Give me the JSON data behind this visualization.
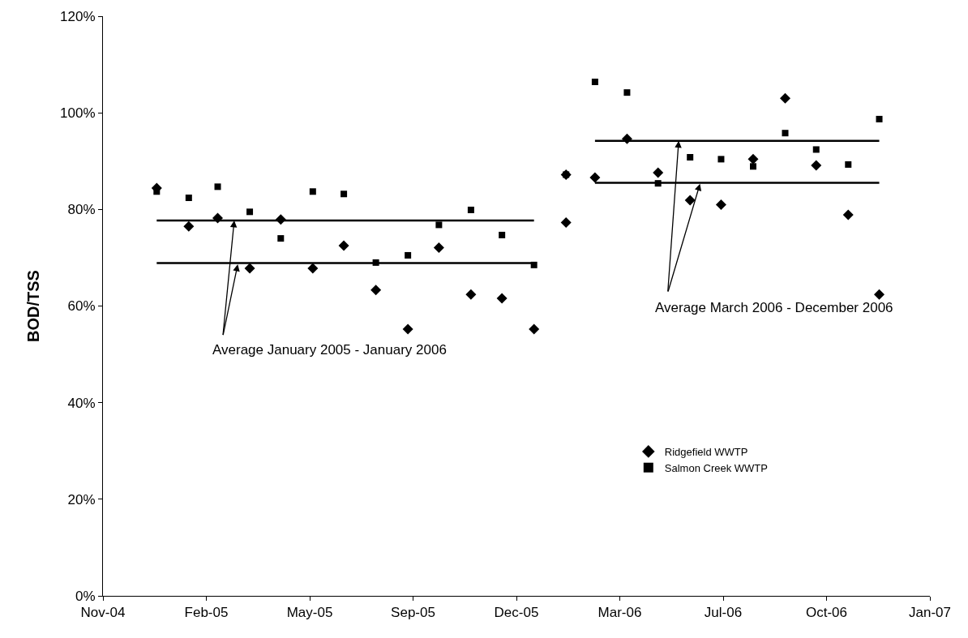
{
  "chart_data": {
    "type": "scatter",
    "ylabel": "BOD/TSS",
    "legend": "bottom right",
    "grid": false,
    "xlim": [
      "2004-11-10",
      "2007-01-19"
    ],
    "xticks": [
      {
        "value": "2004-11-10",
        "label": "Nov-04"
      },
      {
        "value": "2005-02-18",
        "label": "Feb-05"
      },
      {
        "value": "2005-05-29",
        "label": "May-05"
      },
      {
        "value": "2005-09-06",
        "label": "Sep-05"
      },
      {
        "value": "2005-12-15",
        "label": "Dec-05"
      },
      {
        "value": "2006-03-25",
        "label": "Mar-06"
      },
      {
        "value": "2006-07-03",
        "label": "Jul-06"
      },
      {
        "value": "2006-10-11",
        "label": "Oct-06"
      },
      {
        "value": "2007-01-19",
        "label": "Jan-07"
      }
    ],
    "ylim": [
      0,
      120
    ],
    "yticks": [
      {
        "value": 0,
        "label": "0%"
      },
      {
        "value": 20,
        "label": "20%"
      },
      {
        "value": 40,
        "label": "40%"
      },
      {
        "value": 60,
        "label": "60%"
      },
      {
        "value": 80,
        "label": "80%"
      },
      {
        "value": 100,
        "label": "100%"
      },
      {
        "value": 120,
        "label": "120%"
      }
    ],
    "annotations": [
      {
        "text": "Average January 2005 - January 2006",
        "x": "2005-03-17",
        "y": 77.7
      },
      {
        "text": "Average March 2006 - December 2006",
        "x": "2006-05-21",
        "y": 94.2
      }
    ],
    "series": [
      {
        "name": "Ridgefield WWTP",
        "marker": "diamond",
        "color": "#000000",
        "x": [
          "2005-01-01",
          "2005-02-01",
          "2005-03-01",
          "2005-04-01",
          "2005-05-01",
          "2005-06-01",
          "2005-07-01",
          "2005-08-01",
          "2005-09-01",
          "2005-10-01",
          "2005-11-01",
          "2005-12-01",
          "2006-01-01",
          "2006-02-01",
          "2006-02-01",
          "2006-03-01",
          "2006-04-01",
          "2006-05-01",
          "2006-06-01",
          "2006-07-01",
          "2006-08-01",
          "2006-09-01",
          "2006-10-01",
          "2006-11-01",
          "2006-12-01"
        ],
        "values": [
          84.4,
          76.5,
          78.2,
          67.8,
          77.9,
          67.8,
          72.5,
          63.3,
          55.2,
          72.1,
          62.4,
          61.6,
          55.2,
          87.2,
          77.3,
          86.6,
          94.6,
          87.6,
          81.9,
          81.0,
          90.4,
          103.0,
          89.1,
          78.9,
          62.4
        ]
      },
      {
        "name": "Salmon Creek WWTP",
        "marker": "square",
        "color": "#000000",
        "x": [
          "2005-01-01",
          "2005-02-01",
          "2005-03-01",
          "2005-04-01",
          "2005-05-01",
          "2005-06-01",
          "2005-07-01",
          "2005-08-01",
          "2005-09-01",
          "2005-10-01",
          "2005-11-01",
          "2005-12-01",
          "2006-01-01",
          "2006-02-01",
          "2006-03-01",
          "2006-04-01",
          "2006-05-01",
          "2006-06-01",
          "2006-07-01",
          "2006-08-01",
          "2006-09-01",
          "2006-10-01",
          "2006-11-01",
          "2006-12-01"
        ],
        "values": [
          83.7,
          82.4,
          84.7,
          79.5,
          74.0,
          83.7,
          83.2,
          69.0,
          70.5,
          76.8,
          79.9,
          74.7,
          68.5,
          87.2,
          106.4,
          104.2,
          85.4,
          90.8,
          90.4,
          88.9,
          95.8,
          92.4,
          89.3,
          98.7
        ]
      },
      {
        "type": "line",
        "line_style": "solid",
        "marker": "none",
        "color": "#000000",
        "x": [
          "2005-01-01",
          "2006-01-01"
        ],
        "values": [
          77.7,
          77.7
        ]
      },
      {
        "type": "line",
        "line_style": "solid",
        "marker": "none",
        "color": "#000000",
        "x": [
          "2005-01-01",
          "2006-01-01"
        ],
        "values": [
          68.9,
          68.9
        ]
      },
      {
        "type": "line",
        "line_style": "solid",
        "marker": "none",
        "color": "#000000",
        "x": [
          "2006-03-01",
          "2006-12-01"
        ],
        "values": [
          94.2,
          94.2
        ]
      },
      {
        "type": "line",
        "line_style": "solid",
        "marker": "none",
        "color": "#000000",
        "x": [
          "2006-03-01",
          "2006-12-01"
        ],
        "values": [
          85.5,
          85.5
        ]
      }
    ]
  }
}
